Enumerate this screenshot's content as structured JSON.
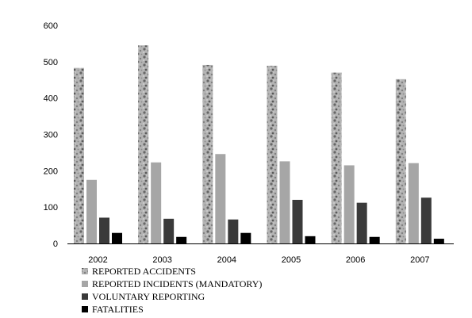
{
  "chart_data": {
    "type": "bar",
    "categories": [
      "2002",
      "2003",
      "2004",
      "2005",
      "2006",
      "2007"
    ],
    "series": [
      {
        "name": "REPORTED ACCIDENTS",
        "values": [
          483,
          545,
          491,
          489,
          470,
          452
        ],
        "color": "#9a9a9a",
        "pattern": "granite"
      },
      {
        "name": "REPORTED INCIDENTS (MANDATORY)",
        "values": [
          175,
          223,
          246,
          226,
          215,
          221
        ],
        "color": "#a6a6a6"
      },
      {
        "name": "VOLUNTARY REPORTING",
        "values": [
          71,
          68,
          66,
          120,
          112,
          126
        ],
        "color": "#3a3a3a"
      },
      {
        "name": "FATALITIES",
        "values": [
          29,
          18,
          29,
          20,
          18,
          13
        ],
        "color": "#000000"
      }
    ],
    "yticks": [
      "0",
      "100",
      "200",
      "300",
      "400",
      "500",
      "600"
    ],
    "ylim": [
      0,
      600
    ],
    "grid": false,
    "legend_position": "bottom-left"
  }
}
